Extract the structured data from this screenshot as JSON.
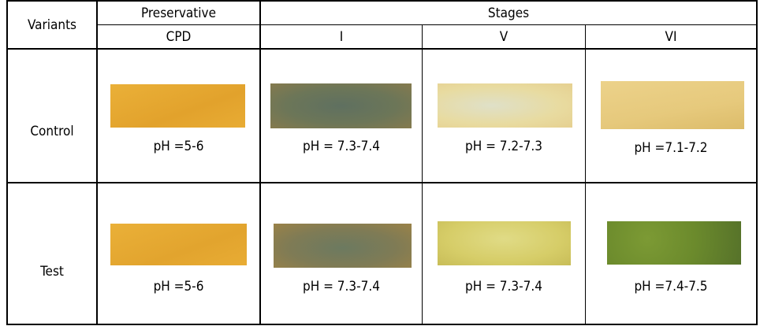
{
  "header": {
    "variants": "Variants",
    "preservative": "Preservative",
    "stages": "Stages",
    "columns": [
      "CPD",
      "I",
      "V",
      "VI"
    ]
  },
  "rows": [
    {
      "label": "Control",
      "cells": [
        {
          "ph": "pH =5-6",
          "color": "#e5a630"
        },
        {
          "ph": "pH = 7.3-7.4",
          "color": "#6f7758"
        },
        {
          "ph": "pH = 7.2-7.3",
          "color": "#e6d9a0"
        },
        {
          "ph": "pH =7.1-7.2",
          "color": "#e6c97c"
        }
      ]
    },
    {
      "label": "Test",
      "cells": [
        {
          "ph": "pH =5-6",
          "color": "#e6a830"
        },
        {
          "ph": "pH = 7.3-7.4",
          "color": "#7f7b55"
        },
        {
          "ph": "pH = 7.3-7.4",
          "color": "#d9d06c"
        },
        {
          "ph": "pH =7.4-7.5",
          "color": "#6b8a2c"
        }
      ]
    }
  ]
}
